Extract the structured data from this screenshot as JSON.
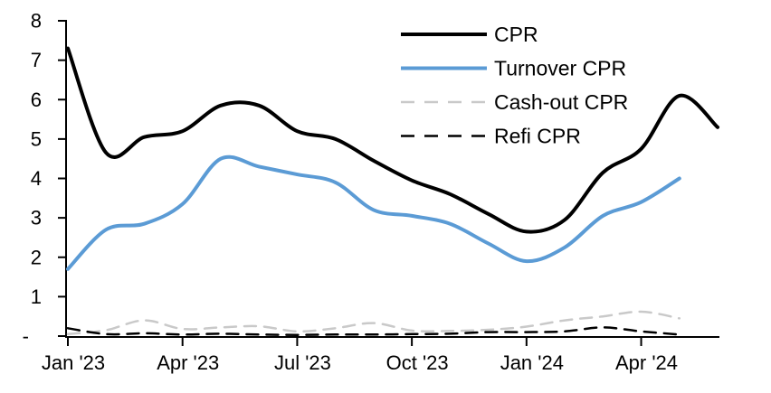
{
  "chart_data": {
    "type": "line",
    "title": "",
    "xlabel": "",
    "ylabel": "",
    "grid": false,
    "legend_position": "top-right",
    "ylim": [
      0,
      8
    ],
    "y_tick_values": [
      0,
      1,
      2,
      3,
      4,
      5,
      6,
      7,
      8
    ],
    "y_tick_labels": [
      "-",
      "1",
      "2",
      "3",
      "4",
      "5",
      "6",
      "7",
      "8"
    ],
    "x": [
      "Jan '23",
      "Feb '23",
      "Mar '23",
      "Apr '23",
      "May '23",
      "Jun '23",
      "Jul '23",
      "Aug '23",
      "Sep '23",
      "Oct '23",
      "Nov '23",
      "Dec '23",
      "Jan '24",
      "Feb '24",
      "Mar '24",
      "Apr '24",
      "May '24",
      "Jun '24"
    ],
    "x_tick_indices": [
      0,
      3,
      6,
      9,
      12,
      15
    ],
    "x_tick_labels": [
      "Jan '23",
      "Apr '23",
      "Jul '23",
      "Oct '23",
      "Jan '24",
      "Apr '24"
    ],
    "series": [
      {
        "name": "CPR",
        "color": "#000000",
        "style": "solid",
        "width": 4,
        "values": [
          7.3,
          4.65,
          5.05,
          5.2,
          5.85,
          5.85,
          5.2,
          5.0,
          4.45,
          3.95,
          3.6,
          3.1,
          2.65,
          2.95,
          4.15,
          4.75,
          6.1,
          5.3
        ]
      },
      {
        "name": "Turnover CPR",
        "color": "#5B9BD5",
        "style": "solid",
        "width": 4,
        "values": [
          1.7,
          2.7,
          2.85,
          3.35,
          4.5,
          4.3,
          4.1,
          3.9,
          3.2,
          3.05,
          2.85,
          2.35,
          1.9,
          2.25,
          3.05,
          3.4,
          4.0,
          null
        ]
      },
      {
        "name": "Cash-out CPR",
        "color": "#C9C9C9",
        "style": "dashed",
        "width": 2.5,
        "values": [
          0.05,
          0.15,
          0.4,
          0.18,
          0.22,
          0.25,
          0.12,
          0.2,
          0.33,
          0.14,
          0.13,
          0.16,
          0.24,
          0.4,
          0.5,
          0.62,
          0.45,
          null
        ]
      },
      {
        "name": "Refi CPR",
        "color": "#000000",
        "style": "dashed",
        "width": 2.5,
        "values": [
          0.2,
          0.05,
          0.07,
          0.04,
          0.06,
          0.04,
          0.03,
          0.04,
          0.04,
          0.05,
          0.06,
          0.1,
          0.1,
          0.12,
          0.22,
          0.12,
          0.04,
          null
        ]
      }
    ],
    "axis_color": "#000000",
    "tick_label_color": "#000000"
  }
}
